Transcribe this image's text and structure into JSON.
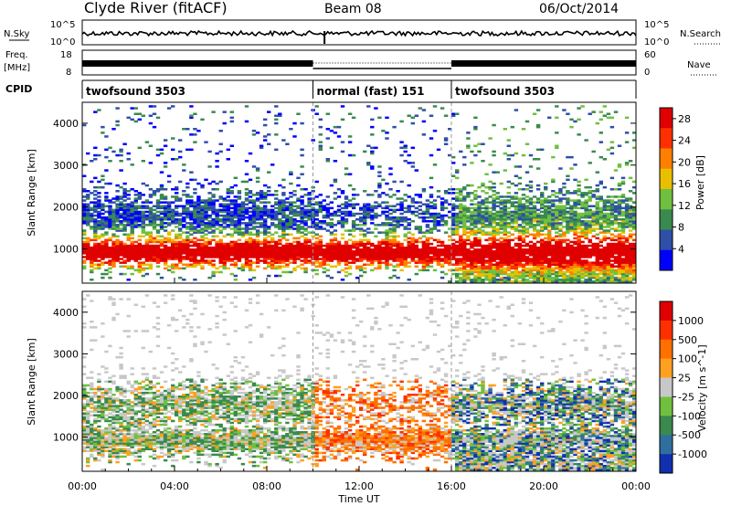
{
  "header": {
    "station": "Clyde River (fitACF)",
    "beam": "Beam 08",
    "date": "06/Oct/2014"
  },
  "nsky_panel": {
    "left_label": "N.Sky",
    "right_label": "N.Search",
    "yticks_left": [
      "10^5",
      "10^0"
    ],
    "yticks_right": [
      "10^5",
      "10^0"
    ]
  },
  "freq_panel": {
    "left_label_line1": "Freq.",
    "left_label_line2": "[MHz]",
    "right_label": "Nave",
    "yticks_left": [
      "18",
      "8"
    ],
    "yticks_right": [
      "60",
      "0"
    ]
  },
  "cpid_panel": {
    "label": "CPID",
    "segments": [
      {
        "name": "twofsound 3503",
        "start_h": 0,
        "end_h": 10
      },
      {
        "name": "normal (fast) 151",
        "start_h": 10,
        "end_h": 16
      },
      {
        "name": "twofsound 3503",
        "start_h": 16,
        "end_h": 24
      }
    ]
  },
  "colors": {
    "power_scale": [
      "#0000ff",
      "#2f4fa8",
      "#3a8a4f",
      "#70c040",
      "#e8c000",
      "#ff8000",
      "#ff3000",
      "#e00000"
    ],
    "velocity_scale": [
      "#1030b0",
      "#2f6fa0",
      "#3a8a4f",
      "#70c040",
      "#c8c8c8",
      "#ffa020",
      "#ff7000",
      "#ff3000",
      "#e00000"
    ]
  },
  "chart_data": [
    {
      "type": "heatmap",
      "title": "Power",
      "ylabel": "Slant Range [km]",
      "xlabel": "Time UT",
      "x_tick_labels": [
        "00:00",
        "04:00",
        "08:00",
        "12:00",
        "16:00",
        "20:00",
        "00:00"
      ],
      "y_tick_labels": [
        "1000",
        "2000",
        "3000",
        "4000"
      ],
      "ylim": [
        180,
        4500
      ],
      "xlim_hours": [
        0,
        24
      ],
      "colorbar_label": "Power [dB]",
      "colorbar_ticks": [
        "4",
        "8",
        "12",
        "16",
        "20",
        "24",
        "28"
      ],
      "zlim": [
        0,
        30
      ],
      "bands": [
        {
          "x": [
            0,
            24
          ],
          "y_center": 900,
          "y_width": 500,
          "value": 27,
          "note": "strong band"
        },
        {
          "x": [
            0,
            10
          ],
          "y_center": 1700,
          "y_width": 900,
          "value": 16
        },
        {
          "x": [
            16,
            24
          ],
          "y_center": 1400,
          "y_width": 1000,
          "value": 24
        }
      ]
    },
    {
      "type": "heatmap",
      "title": "Velocity",
      "ylabel": "Slant Range [km]",
      "xlabel": "Time UT",
      "x_tick_labels": [
        "00:00",
        "04:00",
        "08:00",
        "12:00",
        "16:00",
        "20:00",
        "00:00"
      ],
      "y_tick_labels": [
        "1000",
        "2000",
        "3000",
        "4000"
      ],
      "ylim": [
        180,
        4500
      ],
      "xlim_hours": [
        0,
        24
      ],
      "colorbar_label": "Velocity [m s^-1]",
      "colorbar_ticks": [
        "1000",
        "500",
        "100",
        "25",
        "-25",
        "-100",
        "-500",
        "-1000"
      ],
      "zlim": [
        -1000,
        1000
      ]
    }
  ]
}
